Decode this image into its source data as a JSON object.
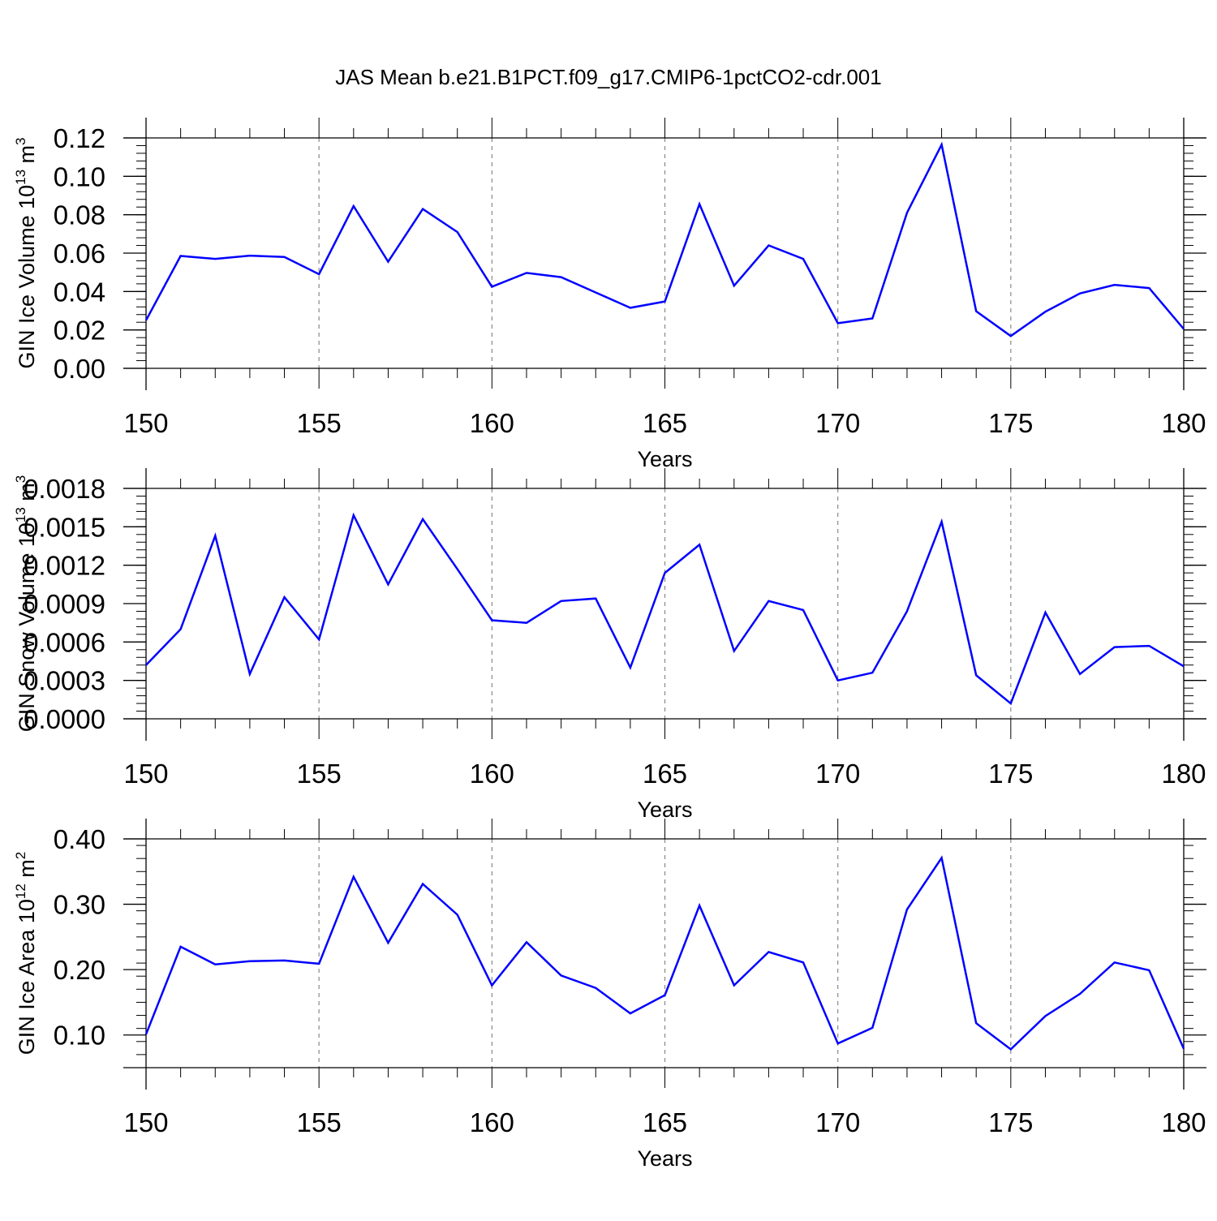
{
  "chart_title": "JAS Mean b.e21.B1PCT.f09_g17.CMIP6-1pctCO2-cdr.001",
  "line_color": "#0000ff",
  "chart_data": [
    {
      "type": "line",
      "ylabel": "GIN Ice Volume 10",
      "ylabel_sup": "13",
      "ylabel_unit": " m",
      "ylabel_unit_sup": "3",
      "xlabel": "Years",
      "xlim": [
        150,
        180
      ],
      "ylim": [
        0,
        0.12
      ],
      "xticks": [
        150,
        155,
        160,
        165,
        170,
        175,
        180
      ],
      "yticks": [
        "0.00",
        "0.02",
        "0.04",
        "0.06",
        "0.08",
        "0.10",
        "0.12"
      ],
      "x": [
        150,
        151,
        152,
        153,
        154,
        155,
        156,
        157,
        158,
        159,
        160,
        161,
        162,
        163,
        164,
        165,
        166,
        167,
        168,
        169,
        170,
        171,
        172,
        173,
        174,
        175,
        176,
        177,
        178,
        179,
        180
      ],
      "series": [
        {
          "values": [
            0.025,
            0.0585,
            0.057,
            0.0587,
            0.058,
            0.049,
            0.0845,
            0.0555,
            0.083,
            0.071,
            0.0425,
            0.0497,
            0.0475,
            0.0395,
            0.0315,
            0.0348,
            0.0855,
            0.043,
            0.064,
            0.057,
            0.0235,
            0.026,
            0.081,
            0.1165,
            0.0297,
            0.0168,
            0.0295,
            0.039,
            0.0435,
            0.0418,
            0.0205
          ]
        }
      ]
    },
    {
      "type": "line",
      "ylabel": "GIN Snow Volume 10",
      "ylabel_sup": "13",
      "ylabel_unit": " m",
      "ylabel_unit_sup": "3",
      "xlabel": "Years",
      "xlim": [
        150,
        180
      ],
      "ylim": [
        0,
        0.0018
      ],
      "xticks": [
        150,
        155,
        160,
        165,
        170,
        175,
        180
      ],
      "yticks": [
        "0.0000",
        "0.0003",
        "0.0006",
        "0.0009",
        "0.0012",
        "0.0015",
        "0.0018"
      ],
      "x": [
        150,
        151,
        152,
        153,
        154,
        155,
        156,
        157,
        158,
        159,
        160,
        161,
        162,
        163,
        164,
        165,
        166,
        167,
        168,
        169,
        170,
        171,
        172,
        173,
        174,
        175,
        176,
        177,
        178,
        179,
        180
      ],
      "series": [
        {
          "values": [
            0.00042,
            0.0007,
            0.00143,
            0.00035,
            0.00095,
            0.00062,
            0.00159,
            0.00105,
            0.00156,
            0.00117,
            0.00077,
            0.00075,
            0.00092,
            0.00094,
            0.0004,
            0.00114,
            0.00136,
            0.00053,
            0.00092,
            0.00085,
            0.0003,
            0.00036,
            0.00084,
            0.00154,
            0.00034,
            0.00012,
            0.00083,
            0.00035,
            0.00056,
            0.00057,
            0.00041
          ]
        }
      ]
    },
    {
      "type": "line",
      "ylabel": "GIN Ice Area 10",
      "ylabel_sup": "12",
      "ylabel_unit": " m",
      "ylabel_unit_sup": "2",
      "xlabel": "Years",
      "xlim": [
        150,
        180
      ],
      "ylim": [
        0.05,
        0.4
      ],
      "xticks": [
        150,
        155,
        160,
        165,
        170,
        175,
        180
      ],
      "yticks": [
        "0.10",
        "0.20",
        "0.30",
        "0.40"
      ],
      "x": [
        150,
        151,
        152,
        153,
        154,
        155,
        156,
        157,
        158,
        159,
        160,
        161,
        162,
        163,
        164,
        165,
        166,
        167,
        168,
        169,
        170,
        171,
        172,
        173,
        174,
        175,
        176,
        177,
        178,
        179,
        180
      ],
      "series": [
        {
          "values": [
            0.101,
            0.235,
            0.208,
            0.213,
            0.214,
            0.209,
            0.342,
            0.241,
            0.331,
            0.284,
            0.176,
            0.242,
            0.191,
            0.172,
            0.133,
            0.161,
            0.298,
            0.176,
            0.227,
            0.211,
            0.087,
            0.111,
            0.292,
            0.371,
            0.118,
            0.078,
            0.129,
            0.163,
            0.211,
            0.199,
            0.079
          ]
        }
      ]
    }
  ]
}
